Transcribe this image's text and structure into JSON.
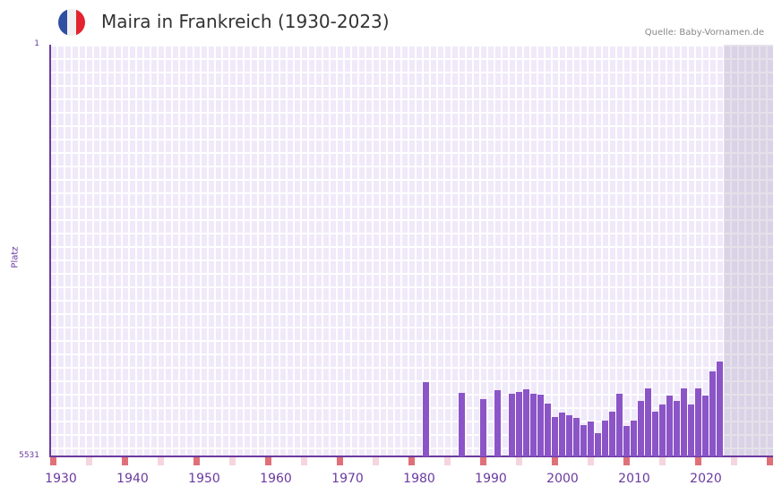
{
  "header": {
    "title": "Maira in Frankreich (1930-2023)",
    "source": "Quelle: Baby-Vornamen.de",
    "flag_colors": [
      "#2f4fa3",
      "#f1f1f1",
      "#e3232f"
    ]
  },
  "colors": {
    "bar": "#8b55c8",
    "axis": "#6a3aa0",
    "grid_bg": "#efe9f9",
    "decade_marker": "#e07078",
    "half_decade_marker": "#f5d5de"
  },
  "chart_data": {
    "type": "bar",
    "title": "Maira in Frankreich (1930-2023)",
    "xlabel": "",
    "ylabel": "Platz",
    "y_inverted": true,
    "ylim": [
      5531,
      1
    ],
    "xlim": [
      1928,
      2028
    ],
    "y_ticks": [
      "1",
      "5531"
    ],
    "x_ticks": [
      "1930",
      "1940",
      "1950",
      "1960",
      "1970",
      "1980",
      "1990",
      "2000",
      "2010",
      "2020"
    ],
    "grid": true,
    "legend": null,
    "x": [
      1980,
      1985,
      1988,
      1990,
      1992,
      1993,
      1994,
      1995,
      1996,
      1997,
      1998,
      1999,
      2000,
      2001,
      2002,
      2003,
      2004,
      2005,
      2006,
      2007,
      2008,
      2009,
      2010,
      2011,
      2012,
      2013,
      2014,
      2015,
      2016,
      2017,
      2018,
      2019,
      2020,
      2021
    ],
    "values": [
      4533,
      4677,
      4761,
      4641,
      4689,
      4665,
      4629,
      4689,
      4701,
      4822,
      5002,
      4942,
      4978,
      5014,
      5110,
      5062,
      5219,
      5050,
      4930,
      4689,
      5122,
      5050,
      4785,
      4617,
      4930,
      4834,
      4713,
      4785,
      4617,
      4834,
      4617,
      4713,
      4389,
      4256
    ],
    "annotation": "Quelle: Baby-Vornamen.de"
  },
  "axes": {
    "ylabel": "Platz",
    "ytop": "1",
    "ybottom": "5531",
    "xticks": [
      "1930",
      "1940",
      "1950",
      "1960",
      "1970",
      "1980",
      "1990",
      "2000",
      "2010",
      "2020"
    ]
  }
}
